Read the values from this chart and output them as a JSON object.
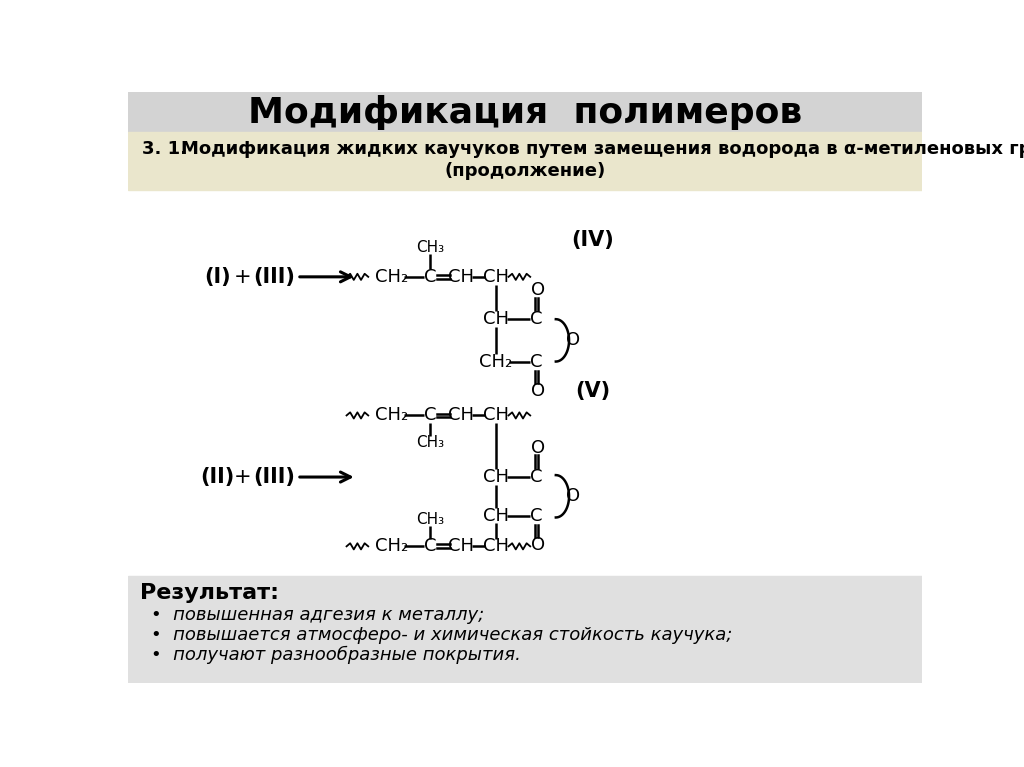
{
  "title": "Модификация  полимеров",
  "title_bg": "#d3d3d3",
  "subtitle_bg": "#eae6cc",
  "result_title": "Результат:",
  "result_bullets": [
    "повышенная адгезия к металлу;",
    "повышается атмосферо- и химическая стойкость каучука;",
    "получают разнообразные покрытия."
  ],
  "main_bg": "#ffffff",
  "bottom_bg": "#e0e0e0"
}
